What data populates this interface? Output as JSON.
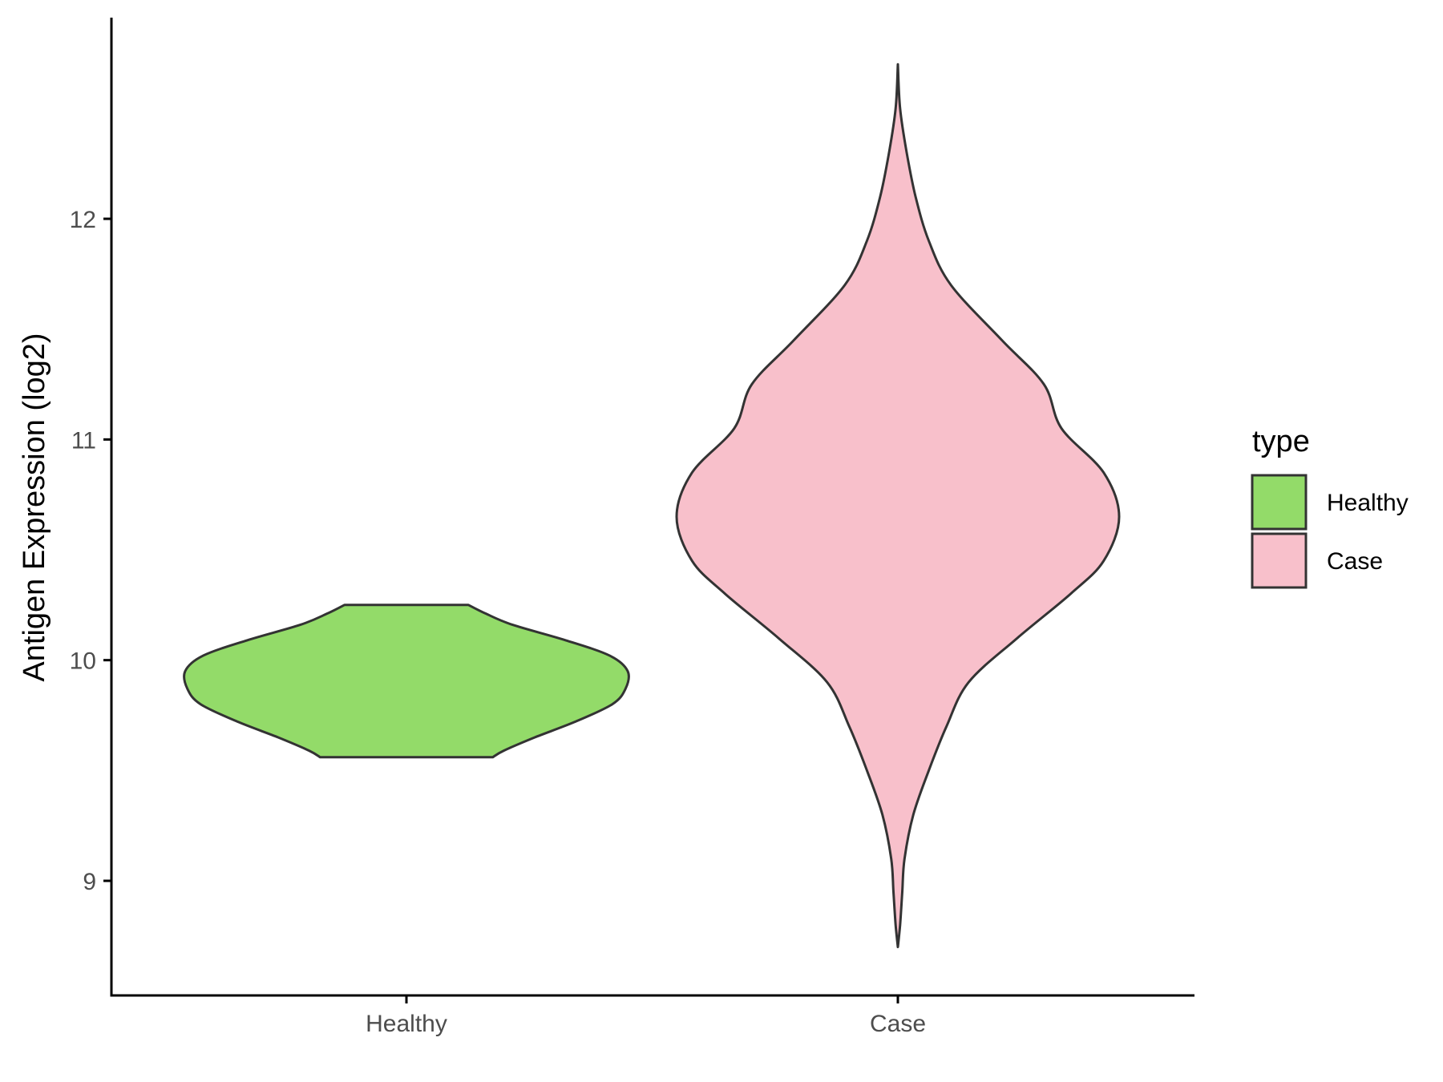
{
  "chart_data": {
    "type": "violin",
    "title": "",
    "xlabel": "",
    "ylabel": "Antigen Expression (log2)",
    "categories": [
      "Healthy",
      "Case"
    ],
    "ylim": [
      8.5,
      12.9
    ],
    "yticks": [
      9,
      10,
      11,
      12
    ],
    "ytick_labels": [
      "9",
      "10",
      "11",
      "12"
    ],
    "grid": false,
    "legend": {
      "title": "type",
      "position": "right",
      "entries": [
        {
          "label": "Healthy",
          "color": "#93DB69"
        },
        {
          "label": "Case",
          "color": "#F8C0CB"
        }
      ]
    },
    "series": [
      {
        "category": "Healthy",
        "color": "#93DB69",
        "outline": "#333333",
        "flat_top": true,
        "flat_bottom": true,
        "density": [
          [
            9.56,
            0.39
          ],
          [
            9.59,
            0.44
          ],
          [
            9.65,
            0.58
          ],
          [
            9.72,
            0.76
          ],
          [
            9.8,
            0.93
          ],
          [
            9.87,
            0.99
          ],
          [
            9.95,
            1.0
          ],
          [
            10.02,
            0.92
          ],
          [
            10.09,
            0.72
          ],
          [
            10.16,
            0.48
          ],
          [
            10.21,
            0.36
          ],
          [
            10.25,
            0.28
          ]
        ]
      },
      {
        "category": "Case",
        "color": "#F8C0CB",
        "outline": "#333333",
        "flat_top": false,
        "flat_bottom": false,
        "density": [
          [
            8.7,
            0.0
          ],
          [
            8.8,
            0.01
          ],
          [
            8.95,
            0.02
          ],
          [
            9.1,
            0.03
          ],
          [
            9.3,
            0.07
          ],
          [
            9.5,
            0.14
          ],
          [
            9.7,
            0.22
          ],
          [
            9.9,
            0.32
          ],
          [
            10.1,
            0.54
          ],
          [
            10.3,
            0.78
          ],
          [
            10.45,
            0.93
          ],
          [
            10.65,
            1.0
          ],
          [
            10.85,
            0.93
          ],
          [
            11.05,
            0.74
          ],
          [
            11.25,
            0.66
          ],
          [
            11.45,
            0.47
          ],
          [
            11.7,
            0.24
          ],
          [
            11.9,
            0.14
          ],
          [
            12.1,
            0.08
          ],
          [
            12.3,
            0.04
          ],
          [
            12.5,
            0.01
          ],
          [
            12.7,
            0.0
          ]
        ]
      }
    ]
  }
}
